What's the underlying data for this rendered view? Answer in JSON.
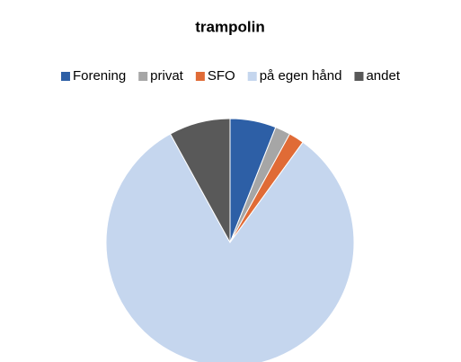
{
  "chart_data": {
    "type": "pie",
    "title": "trampolin",
    "categories": [
      "Forening",
      "privat",
      "SFO",
      "på egen hånd",
      "andet"
    ],
    "values": [
      6,
      2,
      2,
      82,
      8
    ],
    "colors": [
      "#2d5fa6",
      "#a6a6a6",
      "#e06b36",
      "#c5d6ee",
      "#595959"
    ],
    "legend": "top"
  }
}
